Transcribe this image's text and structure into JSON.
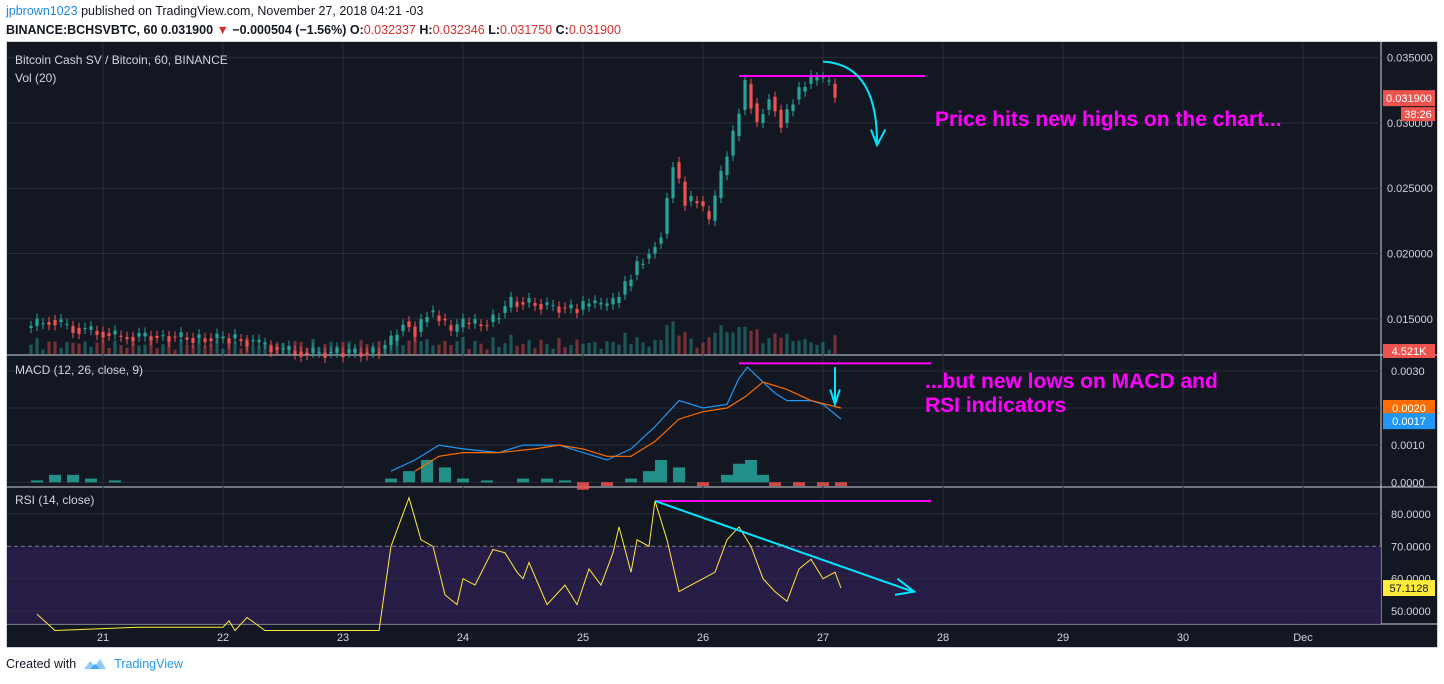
{
  "header": {
    "author": "jpbrown1023",
    "published": "published on TradingView.com, November 27, 2018 04:21 -03",
    "symbol": "BINANCE:BCHSVBTC, 60",
    "last": "0.031900",
    "change": "−0.000504 (−1.56%)",
    "o_label": "O:",
    "o_val": "0.032337",
    "h_label": "H:",
    "h_val": "0.032346",
    "l_label": "L:",
    "l_val": "0.031750",
    "c_label": "C:",
    "c_val": "0.031900"
  },
  "footer": {
    "created": "Created with",
    "brand": "TradingView"
  },
  "colors": {
    "up": "#26a69a",
    "down": "#ef5350",
    "annot": "#ff00ff",
    "arrow": "#00e5ff",
    "bg": "#131722"
  },
  "chart_data": [
    {
      "type": "candlestick",
      "title": "Bitcoin Cash SV / Bitcoin, 60, BINANCE",
      "volume_label": "Vol (20)",
      "ylim": [
        0.0123,
        0.0362
      ],
      "yticks": [
        "0.035000",
        "0.030000",
        "0.025000",
        "0.020000",
        "0.015000"
      ],
      "xticks": [
        "21",
        "22",
        "23",
        "24",
        "25",
        "26",
        "27",
        "28",
        "29",
        "30",
        "Dec"
      ],
      "price_label": "0.031900",
      "countdown": "38:26",
      "volume_label_value": "4.521K",
      "annotation": "Price hits new highs on the chart...",
      "close_series": [
        [
          20.4,
          0.0143
        ],
        [
          20.6,
          0.0149
        ],
        [
          20.8,
          0.0143
        ],
        [
          21.0,
          0.014
        ],
        [
          21.2,
          0.0136
        ],
        [
          21.5,
          0.0137
        ],
        [
          21.8,
          0.0135
        ],
        [
          22.1,
          0.0135
        ],
        [
          22.3,
          0.0132
        ],
        [
          22.5,
          0.0127
        ],
        [
          22.7,
          0.0124
        ],
        [
          23.0,
          0.0124
        ],
        [
          23.3,
          0.0124
        ],
        [
          23.45,
          0.0133
        ],
        [
          23.55,
          0.0148
        ],
        [
          23.65,
          0.014
        ],
        [
          23.75,
          0.0155
        ],
        [
          23.85,
          0.015
        ],
        [
          23.95,
          0.014
        ],
        [
          24.05,
          0.0147
        ],
        [
          24.2,
          0.0145
        ],
        [
          24.3,
          0.015
        ],
        [
          24.45,
          0.0163
        ],
        [
          24.6,
          0.0162
        ],
        [
          24.75,
          0.016
        ],
        [
          24.9,
          0.0158
        ],
        [
          25.0,
          0.0157
        ],
        [
          25.1,
          0.0162
        ],
        [
          25.2,
          0.016
        ],
        [
          25.3,
          0.0162
        ],
        [
          25.4,
          0.0175
        ],
        [
          25.5,
          0.0192
        ],
        [
          25.6,
          0.02
        ],
        [
          25.7,
          0.0215
        ],
        [
          25.8,
          0.027
        ],
        [
          25.9,
          0.024
        ],
        [
          26.0,
          0.024
        ],
        [
          26.1,
          0.0225
        ],
        [
          26.2,
          0.026
        ],
        [
          26.3,
          0.029
        ],
        [
          26.4,
          0.033
        ],
        [
          26.5,
          0.03
        ],
        [
          26.6,
          0.032
        ],
        [
          26.7,
          0.03
        ],
        [
          26.8,
          0.0318
        ],
        [
          26.9,
          0.033
        ],
        [
          27.0,
          0.0335
        ],
        [
          27.1,
          0.033
        ],
        [
          27.15,
          0.0319
        ]
      ]
    },
    {
      "type": "line",
      "title": "MACD (12, 26, close, 9)",
      "ylim": [
        -0.0001,
        0.0034
      ],
      "yticks": [
        "0.0030",
        "0.0020",
        "0.0010",
        "0.0000"
      ],
      "value_labels": [
        "0.0020",
        "0.0017"
      ],
      "annotation": "...but new lows on MACD and RSI indicators",
      "series": [
        {
          "values": [
            [
              23.4,
              0.0003
            ],
            [
              23.6,
              0.0006
            ],
            [
              23.8,
              0.001
            ],
            [
              24.0,
              0.0009
            ],
            [
              24.3,
              0.0008
            ],
            [
              24.5,
              0.001
            ],
            [
              24.8,
              0.001
            ],
            [
              25.0,
              0.0008
            ],
            [
              25.2,
              0.0006
            ],
            [
              25.4,
              0.0009
            ],
            [
              25.6,
              0.0015
            ],
            [
              25.8,
              0.0022
            ],
            [
              26.0,
              0.002
            ],
            [
              26.2,
              0.0021
            ],
            [
              26.3,
              0.0028
            ],
            [
              26.37,
              0.0031
            ],
            [
              26.5,
              0.0027
            ],
            [
              26.6,
              0.0024
            ],
            [
              26.7,
              0.0022
            ],
            [
              26.9,
              0.0022
            ],
            [
              27.0,
              0.0021
            ],
            [
              27.15,
              0.0017
            ]
          ]
        },
        {
          "values": [
            [
              23.6,
              0.0003
            ],
            [
              23.8,
              0.0007
            ],
            [
              24.0,
              0.0008
            ],
            [
              24.3,
              0.0008
            ],
            [
              24.6,
              0.0009
            ],
            [
              24.8,
              0.001
            ],
            [
              25.0,
              0.0009
            ],
            [
              25.2,
              0.0007
            ],
            [
              25.4,
              0.0007
            ],
            [
              25.6,
              0.0011
            ],
            [
              25.8,
              0.0017
            ],
            [
              26.0,
              0.0019
            ],
            [
              26.2,
              0.002
            ],
            [
              26.35,
              0.0023
            ],
            [
              26.5,
              0.0027
            ],
            [
              26.7,
              0.0025
            ],
            [
              26.9,
              0.0022
            ],
            [
              27.15,
              0.002
            ]
          ]
        }
      ],
      "histogram": [
        [
          20.45,
          5e-05
        ],
        [
          20.6,
          0.0002
        ],
        [
          20.75,
          0.0002
        ],
        [
          20.9,
          0.0001
        ],
        [
          21.1,
          5e-05
        ],
        [
          23.4,
          0.0001
        ],
        [
          23.55,
          0.0003
        ],
        [
          23.7,
          0.0006
        ],
        [
          23.85,
          0.0004
        ],
        [
          24.0,
          0.0001
        ],
        [
          24.2,
          5e-05
        ],
        [
          24.5,
          0.0001
        ],
        [
          24.7,
          0.0001
        ],
        [
          24.85,
          5e-05
        ],
        [
          25.0,
          -0.0002
        ],
        [
          25.2,
          -0.0001
        ],
        [
          25.4,
          0.0001
        ],
        [
          25.55,
          0.0003
        ],
        [
          25.65,
          0.0006
        ],
        [
          25.8,
          0.0004
        ],
        [
          26.0,
          -0.0001
        ],
        [
          26.2,
          0.0002
        ],
        [
          26.3,
          0.0005
        ],
        [
          26.4,
          0.0006
        ],
        [
          26.5,
          0.0002
        ],
        [
          26.6,
          -0.0001
        ],
        [
          26.8,
          -0.0001
        ],
        [
          27.0,
          -0.0001
        ],
        [
          27.15,
          -0.0001
        ]
      ]
    },
    {
      "type": "line",
      "title": "RSI (14, close)",
      "ylim": [
        46,
        88
      ],
      "yticks": [
        "80.0000",
        "70.0000",
        "60.0000",
        "50.0000"
      ],
      "value_label": "57.1128",
      "band": [
        30,
        70
      ],
      "series": [
        {
          "values": [
            [
              20.45,
              49
            ],
            [
              20.6,
              44
            ],
            [
              21.3,
              45
            ],
            [
              22.0,
              45
            ],
            [
              22.05,
              47
            ],
            [
              22.1,
              44
            ],
            [
              22.2,
              48
            ],
            [
              22.35,
              44
            ],
            [
              23.3,
              44
            ],
            [
              23.4,
              70
            ],
            [
              23.5,
              80
            ],
            [
              23.55,
              85
            ],
            [
              23.65,
              72
            ],
            [
              23.75,
              70
            ],
            [
              23.85,
              55
            ],
            [
              23.95,
              52
            ],
            [
              24.0,
              60
            ],
            [
              24.1,
              58
            ],
            [
              24.25,
              69
            ],
            [
              24.35,
              68
            ],
            [
              24.45,
              62
            ],
            [
              24.5,
              60
            ],
            [
              24.55,
              65
            ],
            [
              24.7,
              52
            ],
            [
              24.85,
              58
            ],
            [
              24.95,
              52
            ],
            [
              25.05,
              63
            ],
            [
              25.15,
              58
            ],
            [
              25.25,
              68
            ],
            [
              25.3,
              76
            ],
            [
              25.4,
              62
            ],
            [
              25.45,
              72
            ],
            [
              25.55,
              70
            ],
            [
              25.6,
              84
            ],
            [
              25.7,
              72
            ],
            [
              25.8,
              56
            ],
            [
              25.9,
              58
            ],
            [
              26.0,
              60
            ],
            [
              26.1,
              62
            ],
            [
              26.2,
              72
            ],
            [
              26.3,
              76
            ],
            [
              26.4,
              70
            ],
            [
              26.5,
              60
            ],
            [
              26.6,
              56
            ],
            [
              26.7,
              53
            ],
            [
              26.8,
              63
            ],
            [
              26.9,
              66
            ],
            [
              27.0,
              60
            ],
            [
              27.1,
              62
            ],
            [
              27.15,
              57.11
            ]
          ]
        }
      ]
    }
  ]
}
